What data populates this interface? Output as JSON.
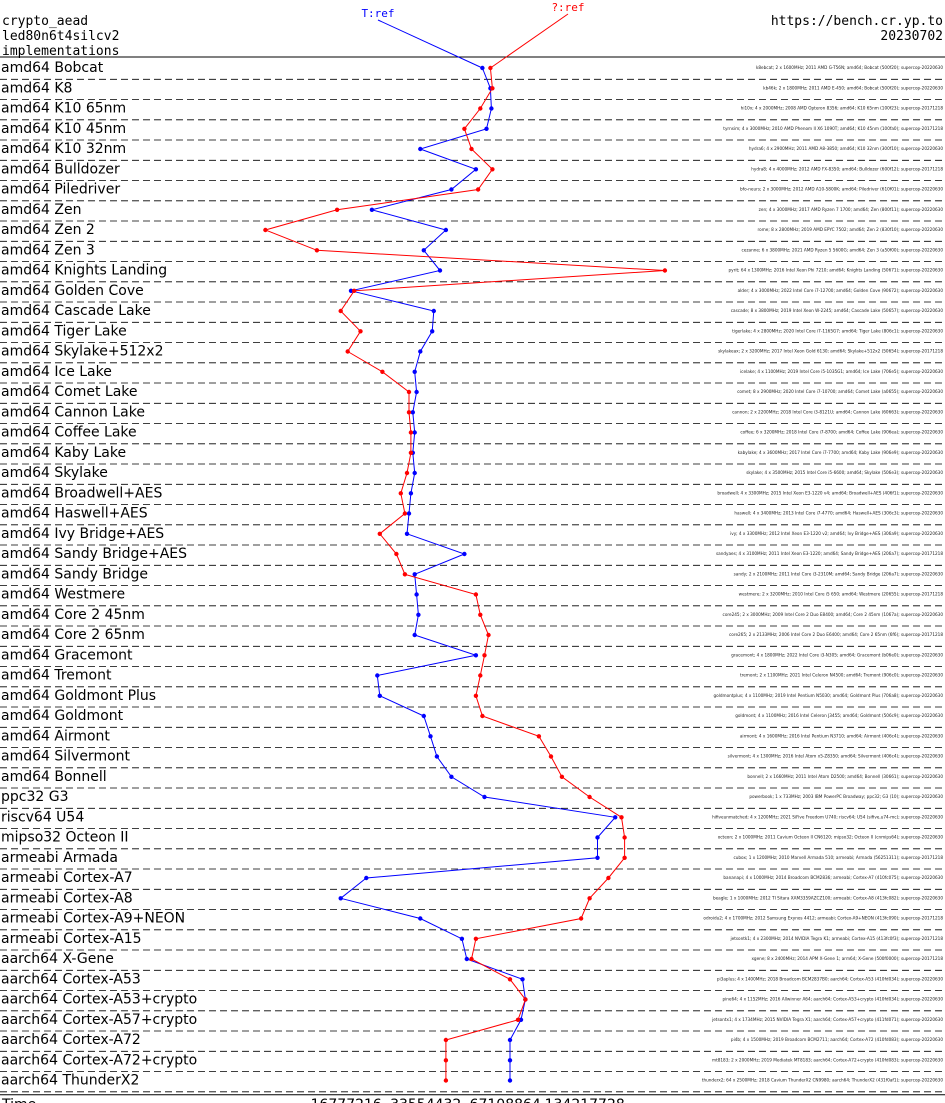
{
  "header": {
    "line1": "crypto_aead",
    "line2": "led80n6t4silcv2",
    "line3": "implementations",
    "url": "https://bench.cr.yp.to",
    "date": "20230702"
  },
  "chart_data": {
    "type": "line",
    "title": "crypto_aead led80n6t4silcv2",
    "xlabel": "Time",
    "x_scale": "log2",
    "xlim": [
      4300000,
      400000000
    ],
    "x_ticks": [
      "16777216",
      "33554432",
      "67108864",
      "134217728"
    ],
    "x_tick_values": [
      16777216,
      33554432,
      67108864,
      134217728
    ],
    "series": [
      {
        "name": "T:ref",
        "color": "#0000ff"
      },
      {
        "name": "?:ref",
        "color": "#ff0000"
      }
    ],
    "categories": [
      "amd64 Bobcat",
      "amd64 K8",
      "amd64 K10 65nm",
      "amd64 K10 45nm",
      "amd64 K10 32nm",
      "amd64 Bulldozer",
      "amd64 Piledriver",
      "amd64 Zen",
      "amd64 Zen 2",
      "amd64 Zen 3",
      "amd64 Knights Landing",
      "amd64 Golden Cove",
      "amd64 Cascade Lake",
      "amd64 Tiger Lake",
      "amd64 Skylake+512x2",
      "amd64 Ice Lake",
      "amd64 Comet Lake",
      "amd64 Cannon Lake",
      "amd64 Coffee Lake",
      "amd64 Kaby Lake",
      "amd64 Skylake",
      "amd64 Broadwell+AES",
      "amd64 Haswell+AES",
      "amd64 Ivy Bridge+AES",
      "amd64 Sandy Bridge+AES",
      "amd64 Sandy Bridge",
      "amd64 Westmere",
      "amd64 Core 2 45nm",
      "amd64 Core 2 65nm",
      "amd64 Gracemont",
      "amd64 Tremont",
      "amd64 Goldmont Plus",
      "amd64 Goldmont",
      "amd64 Airmont",
      "amd64 Silvermont",
      "amd64 Bonnell",
      "ppc32 G3",
      "riscv64 U54",
      "mipso32 Octeon II",
      "armeabi Armada",
      "armeabi Cortex-A7",
      "armeabi Cortex-A8",
      "armeabi Cortex-A9+NEON",
      "armeabi Cortex-A15",
      "aarch64 X-Gene",
      "aarch64 Cortex-A53",
      "aarch64 Cortex-A53+crypto",
      "aarch64 Cortex-A57+crypto",
      "aarch64 Cortex-A72",
      "aarch64 Cortex-A72+crypto",
      "aarch64 ThunderX2"
    ],
    "tref_values": [
      55000000,
      59000000,
      59500000,
      57000000,
      32000000,
      52000000,
      42000000,
      21000000,
      40000000,
      33000000,
      38000000,
      17500000,
      36000000,
      35500000,
      32000000,
      30500000,
      31000000,
      30000000,
      30500000,
      30000000,
      30500000,
      29500000,
      29000000,
      28500000,
      47000000,
      30500000,
      31000000,
      31500000,
      30500000,
      52000000,
      22000000,
      22500000,
      33000000,
      35000000,
      37000000,
      42000000,
      56000000,
      175000000,
      150000000,
      150000000,
      20000000,
      16000000,
      32000000,
      46000000,
      48000000,
      78000000,
      80000000,
      77000000,
      70000000,
      70000000,
      70000000
    ],
    "qref_values": [
      59000000,
      60000000,
      54000000,
      47000000,
      50000000,
      60000000,
      53000000,
      15500000,
      8300000,
      13000000,
      270000000,
      18000000,
      16000000,
      19000000,
      17000000,
      23000000,
      29000000,
      29000000,
      29500000,
      29500000,
      28500000,
      27000000,
      28000000,
      22500000,
      26000000,
      28000000,
      52000000,
      54000000,
      58000000,
      56000000,
      54000000,
      52000000,
      55000000,
      90000000,
      100000000,
      110000000,
      140000000,
      185000000,
      190000000,
      190000000,
      165000000,
      140000000,
      130000000,
      52000000,
      50000000,
      70000000,
      80000000,
      75000000,
      40000000,
      40000000,
      40000000
    ],
    "machine_notes": [
      "k8ebcat; 2 x 1600MHz; 2011 AMD G-T56N; amd64; Bobcat (500f20); supercop-20220630",
      "kb46k; 2 x 1800MHz; 2011 AMD E-450; amd64; Bobcat (500f20); supercop-20220630",
      "hi10x; 4 x 2000MHz; 2008 AMD Opteron 8356; amd64; K10 65nm (100f23); supercop-20171218",
      "tyrnsim; 4 x 3000MHz; 2010 AMD Phenom II X6 1090T; amd64; K10 45nm (100fa0); supercop-20171218",
      "hydra6; 4 x 2900MHz; 2011 AMD A8-3850; amd64; K10 32nm (300f10); supercop-20220630",
      "hydra8; 4 x 4000MHz; 2012 AMD FX-8350; amd64; Bulldozer (600f12); supercop-20171218",
      "bfo-neurs; 2 x 3000MHz; 2012 AMD A10-5800K; amd64; Piledriver (610f01); supercop-20220630",
      "zen; 4 x 3000MHz; 2017 AMD Ryzen 7 1700; amd64; Zen (800f11); supercop-20220630",
      "rome; 8 x 2800MHz; 2019 AMD EPYC 7502; amd64; Zen 2 (830f10); supercop-20220630",
      "cezanne; 6 x 3800MHz; 2021 AMD Ryzen 5 5600G; amd64; Zen 3 (a50f00); supercop-20220630",
      "pyrit; 64 x 1300MHz; 2016 Intel Xeon Phi 7210; amd64; Knights Landing (50671); supercop-20220630",
      "alder; 4 x 3000MHz; 2022 Intel Core i7-12700; amd64; Golden Cove (90672); supercop-20220630",
      "cascade; 8 x 3800MHz; 2019 Intel Xeon W-2245; amd64; Cascade Lake (50657); supercop-20220630",
      "tigerlake; 4 x 2800MHz; 2020 Intel Core i7-1165G7; amd64; Tiger Lake (806c1); supercop-20220630",
      "skylakeax; 2 x 3200MHz; 2017 Intel Xeon Gold 6130; amd64; Skylake+512x2 (50654); supercop-20171218",
      "icelake; 4 x 1100MHz; 2019 Intel Core i5-1035G1; amd64; Ice Lake (706e5); supercop-20220630",
      "comet; 8 x 2900MHz; 2020 Intel Core i7-10700; amd64; Comet Lake (a0655); supercop-20220630",
      "cannon; 2 x 2200MHz; 2018 Intel Core i3-8121U; amd64; Cannon Lake (60663); supercop-20220630",
      "coffee; 6 x 3200MHz; 2018 Intel Core i7-8700; amd64; Coffee Lake (906ea); supercop-20220630",
      "kabylake; 4 x 3600MHz; 2017 Intel Core i7-7700; amd64; Kaby Lake (906e9); supercop-20220630",
      "skylake; 4 x 3500MHz; 2015 Intel Core i5-6600; amd64; Skylake (506e3); supercop-20220630",
      "broadwell; 4 x 3300MHz; 2015 Intel Xeon E3-1220 v4; amd64; Broadwell+AES (406f1); supercop-20220630",
      "haswell; 4 x 3400MHz; 2013 Intel Core i7-4770; amd64; Haswell+AES (306c3); supercop-20220630",
      "ivy; 4 x 3300MHz; 2012 Intel Xeon E3-1220 v2; amd64; Ivy Bridge+AES (306a9); supercop-20220630",
      "sandyaes; 4 x 3100MHz; 2011 Intel Xeon E3-1220; amd64; Sandy Bridge+AES (206a7); supercop-20171218",
      "sandy; 2 x 2100MHz; 2011 Intel Core i3-2310M; amd64; Sandy Bridge (206a7); supercop-20220630",
      "westmere; 2 x 3200MHz; 2010 Intel Core i5 650; amd64; Westmere (20655); supercop-20171218",
      "core245; 2 x 3000MHz; 2009 Intel Core 2 Duo E8400; amd64; Core 2 45nm (1067a); supercop-20220630",
      "core265; 2 x 2133MHz; 2006 Intel Core 2 Duo E6400; amd64; Core 2 65nm (6f6); supercop-20171218",
      "gracemont; 4 x 1800MHz; 2022 Intel Core i3-N305; amd64; Gracemont (b06e0); supercop-20220630",
      "tremont; 2 x 1100MHz; 2021 Intel Celeron N4500; amd64; Tremont (906c0); supercop-20220630",
      "goldmontplus; 4 x 1100MHz; 2019 Intel Pentium N5030; amd64; Goldmont Plus (706a8); supercop-20220630",
      "goldmont; 4 x 1100MHz; 2016 Intel Celeron J3455; amd64; Goldmont (506c9); supercop-20220630",
      "airmont; 4 x 1600MHz; 2016 Intel Pentium N3710; amd64; Airmont (406c4); supercop-20220630",
      "silvermont; 4 x 1300MHz; 2016 Intel Atom x5-Z8350; amd64; Silvermont (406c4); supercop-20220630",
      "bonnell; 2 x 1660MHz; 2011 Intel Atom D2500; amd64; Bonnell (30661); supercop-20220630",
      "powerbook; 1 x 733MHz; 2003 IBM PowerPC Broadway; ppc32; G3 (10); supercop-20220630",
      "hifiveunmatched; 4 x 1200MHz; 2021 SiFive Freedom U740; riscv64; U54 (sifive,u74-mc); supercop-20220630",
      "octeon; 2 x 1000MHz; 2011 Cavium Octeon II CN6120; mipso32; Octeon II (cnmips64); supercop-20220630",
      "cubox; 1 x 1200MHz; 2010 Marvell Armada 510; armeabi; Armada (56251311); supercop-20171218",
      "bananapi; 4 x 1000MHz; 2014 Broadcom BCM2836; armeabi; Cortex-A7 (410fc075); supercop-20220630",
      "beagle; 1 x 1000MHz; 2012 TI Sitara XAM3359AZCZ100; armeabi; Cortex-A8 (413fc082); supercop-20220630",
      "odroidu2; 4 x 1700MHz; 2012 Samsung Exynos 4412; armeabi; Cortex-A9+NEON (413fc090); supercop-20171218",
      "jetsontk1; 4 x 2300MHz; 2014 NVIDIA Tegra K1; armeabi; Cortex-A15 (413fc0f3); supercop-20171218",
      "xgene; 8 x 2400MHz; 2014 APM X-Gene 1; arm64; X-Gene (500f0000); supercop-20171218",
      "pi3aplus; 4 x 1400MHz; 2018 Broadcom BCM2837B0; aarch64; Cortex-A53 (410fd034); supercop-20220630",
      "pine64; 4 x 1152MHz; 2016 Allwinner A64; aarch64; Cortex-A53+crypto (410fd034); supercop-20220630",
      "jetsontx1; 4 x 1734MHz; 2015 NVIDIA Tegra X1; aarch64; Cortex-A57+crypto (411fd071); supercop-20220630",
      "pi4b; 4 x 1500MHz; 2019 Broadcom BCM2711; aarch64; Cortex-A72 (410fd083); supercop-20220630",
      "mt8183; 2 x 2000MHz; 2019 Mediatek MT8183; aarch64; Cortex-A72+crypto (410fd083); supercop-20220630",
      "thunderx2; 64 x 2500MHz; 2018 Cavium ThunderX2 CN9980; aarch64; ThunderX2 (431f0af1); supercop-20220630"
    ]
  }
}
